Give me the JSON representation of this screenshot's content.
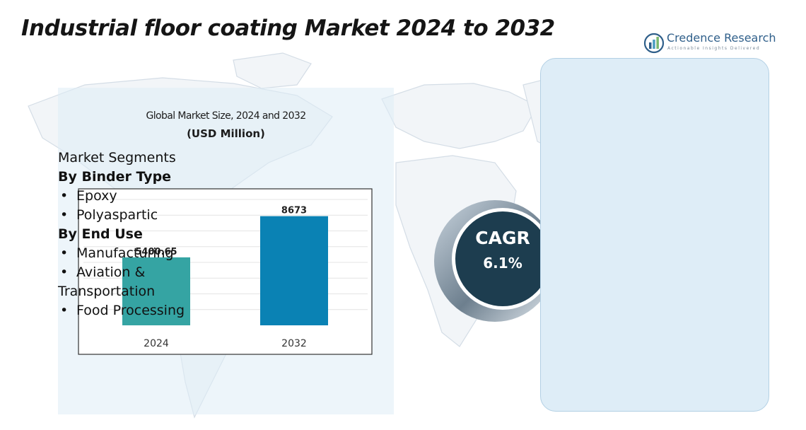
{
  "header": {
    "title": "Industrial floor coating Market 2024 to 2032"
  },
  "logo": {
    "name": "Credence Research",
    "tagline": "Actionable Insights Delivered"
  },
  "chart_data": {
    "type": "bar",
    "title": "Global Market Size, 2024 and 2032",
    "unit_label": "(USD Million)",
    "categories": [
      "2024",
      "2032"
    ],
    "values": [
      5400.65,
      8673
    ],
    "value_labels": [
      "5400.65",
      "8673"
    ],
    "bar_colors": [
      "#35a4a3",
      "#0a82b4"
    ],
    "xlabel": "",
    "ylabel": "",
    "ylim": [
      0,
      10000
    ],
    "grid": true
  },
  "cagr": {
    "label": "CAGR",
    "value": "6.1%"
  },
  "segments": {
    "heading": "Market Segments",
    "bullet": "•",
    "groups": [
      {
        "title": "By Binder Type",
        "items": [
          "Epoxy",
          "Polyaspartic"
        ]
      },
      {
        "title": "By End Use",
        "items": [
          "Manufacturing",
          "Aviation &",
          "Transportation",
          "Food Processing"
        ]
      }
    ]
  }
}
